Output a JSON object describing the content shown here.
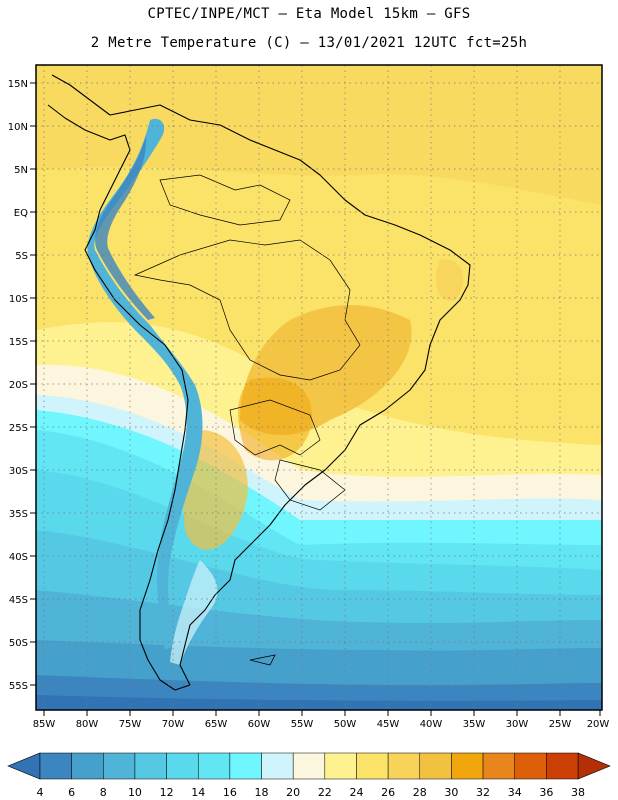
{
  "header": {
    "line1": "CPTEC/INPE/MCT –  Eta Model 15km – GFS",
    "line2": "2 Metre Temperature (C) – 13/01/2021 12UTC fct=25h"
  },
  "map": {
    "lat_labels": [
      "15N",
      "10N",
      "5N",
      "EQ",
      "5S",
      "10S",
      "15S",
      "20S",
      "25S",
      "30S",
      "35S",
      "40S",
      "45S",
      "50S",
      "55S"
    ],
    "lon_labels": [
      "85W",
      "80W",
      "75W",
      "70W",
      "65W",
      "60W",
      "55W",
      "50W",
      "45W",
      "40W",
      "35W",
      "30W",
      "25W",
      "20W"
    ]
  },
  "colorbar": {
    "labels": [
      "4",
      "6",
      "8",
      "10",
      "12",
      "14",
      "16",
      "18",
      "20",
      "22",
      "24",
      "26",
      "28",
      "30",
      "32",
      "34",
      "36",
      "38"
    ],
    "colors": [
      "#3173b5",
      "#3b86c0",
      "#46a0cc",
      "#4fb4d8",
      "#55c8e4",
      "#5ad8ec",
      "#62e6f3",
      "#6ff6ff",
      "#d0f4fb",
      "#fdf6df",
      "#fdf190",
      "#fbe268",
      "#f8d35a",
      "#f3c140",
      "#f0a60c",
      "#e8851c",
      "#dd5f0a",
      "#cc3f05",
      "#b42f05"
    ]
  }
}
